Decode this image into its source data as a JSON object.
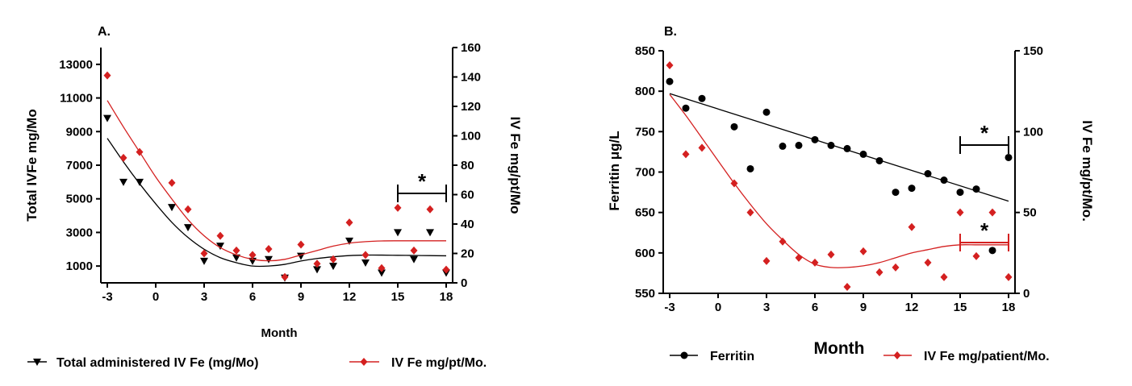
{
  "colors": {
    "black": "#000000",
    "red": "#d42020",
    "red_fit": "#c0392b"
  },
  "chart_data": [
    {
      "panel": "A.",
      "type": "scatter",
      "xlabel": "Month",
      "ylabel": "Total IVFe mg/Mo",
      "y2label": "IV Fe mg/pt/Mo",
      "xlim": [
        -3.4,
        18.4
      ],
      "xticks": [
        -3,
        0,
        3,
        6,
        9,
        12,
        15,
        18
      ],
      "ylim": [
        0,
        14000
      ],
      "yticks": [
        1000,
        3000,
        5000,
        7000,
        9000,
        11000,
        13000
      ],
      "y2lim": [
        0,
        160
      ],
      "y2ticks": [
        0,
        20,
        40,
        60,
        80,
        100,
        120,
        140,
        160
      ],
      "annotation": {
        "text": "*",
        "x_from": 15,
        "x_to": 18
      },
      "series": [
        {
          "name": "Total administered IV Fe (mg/Mo)",
          "axis": "left",
          "marker": "triangle-down",
          "color": "#000000",
          "x": [
            -3,
            -2,
            -1,
            1,
            2,
            3,
            4,
            5,
            6,
            7,
            8,
            9,
            10,
            11,
            12,
            13,
            14,
            15,
            16,
            17,
            18
          ],
          "y": [
            9800,
            6000,
            6000,
            4500,
            3300,
            1300,
            2200,
            1500,
            1300,
            1400,
            300,
            1600,
            800,
            1000,
            2500,
            1200,
            600,
            3000,
            1400,
            3000,
            600
          ],
          "fit": {
            "x": [
              -3,
              -2,
              -1,
              0,
              1,
              2,
              3,
              4,
              5,
              6,
              7,
              8,
              9,
              10,
              11,
              12,
              13,
              14,
              15,
              16,
              17,
              18
            ],
            "y": [
              8600,
              7200,
              5900,
              4700,
              3600,
              2700,
              2000,
              1500,
              1200,
              1000,
              1000,
              1100,
              1300,
              1450,
              1550,
              1620,
              1650,
              1650,
              1640,
              1630,
              1620,
              1610
            ]
          }
        },
        {
          "name": "IV Fe mg/pt/Mo.",
          "axis": "right",
          "marker": "diamond",
          "color": "#d42020",
          "x": [
            -3,
            -2,
            -1,
            1,
            2,
            3,
            4,
            5,
            6,
            7,
            8,
            9,
            10,
            11,
            12,
            13,
            14,
            15,
            16,
            17,
            18
          ],
          "y": [
            141,
            85,
            89,
            68,
            50,
            20,
            32,
            22,
            19,
            23,
            4,
            26,
            13,
            16,
            41,
            19,
            10,
            51,
            22,
            50,
            9
          ],
          "fit": {
            "x": [
              -3,
              -2,
              -1,
              0,
              1,
              2,
              3,
              4,
              5,
              6,
              7,
              8,
              9,
              10,
              11,
              12,
              13,
              14,
              15,
              16,
              17,
              18
            ],
            "y": [
              124,
              106,
              89,
              72,
              57,
              43,
              32,
              24,
              19,
              16,
              15,
              16,
              19,
              22,
              25,
              27,
              28,
              28.5,
              28.6,
              28.6,
              28.6,
              28.6
            ]
          }
        }
      ]
    },
    {
      "panel": "B.",
      "type": "scatter",
      "xlabel": "Month",
      "ylabel": "Ferritin μg/L",
      "y2label": "IV Fe mg/pt/Mo.",
      "xlim": [
        -3.4,
        18.4
      ],
      "xticks": [
        -3,
        0,
        3,
        6,
        9,
        12,
        15,
        18
      ],
      "ylim": [
        550,
        850
      ],
      "yticks": [
        550,
        600,
        650,
        700,
        750,
        800,
        850
      ],
      "y2lim": [
        0,
        150
      ],
      "y2ticks": [
        0,
        50,
        100,
        150
      ],
      "annotations": [
        {
          "text": "*",
          "x_from": 15,
          "x_to": 18,
          "y": 740,
          "color": "#000000"
        },
        {
          "text": "*",
          "x_from": 15,
          "x_to": 18,
          "y": 30,
          "axis": "right",
          "color": "#d42020"
        }
      ],
      "series": [
        {
          "name": "Ferritin",
          "axis": "left",
          "marker": "circle",
          "color": "#000000",
          "x": [
            -3,
            -2,
            -1,
            1,
            2,
            3,
            4,
            5,
            6,
            7,
            8,
            9,
            10,
            11,
            12,
            13,
            14,
            15,
            16,
            17,
            18
          ],
          "y": [
            812,
            779,
            791,
            756,
            704,
            774,
            732,
            733,
            740,
            733,
            729,
            722,
            714,
            675,
            680,
            698,
            690,
            675,
            679,
            603,
            718
          ],
          "fit": {
            "x": [
              -3,
              18
            ],
            "y": [
              797,
              664
            ]
          }
        },
        {
          "name": "IV Fe mg/patient/Mo.",
          "axis": "right",
          "marker": "diamond",
          "color": "#d42020",
          "x": [
            -3,
            -2,
            -1,
            1,
            2,
            3,
            4,
            5,
            6,
            7,
            8,
            9,
            10,
            11,
            12,
            13,
            14,
            15,
            16,
            17,
            18
          ],
          "y": [
            141,
            86,
            90,
            68,
            50,
            20,
            32,
            22,
            19,
            24,
            4,
            26,
            13,
            16,
            41,
            19,
            10,
            50,
            23,
            50,
            10
          ],
          "fit": {
            "x": [
              -3,
              -2,
              -1,
              0,
              1,
              2,
              3,
              4,
              5,
              6,
              7,
              8,
              9,
              10,
              11,
              12,
              13,
              14,
              15,
              16,
              17,
              18
            ],
            "y": [
              123,
              110,
              96,
              82,
              68,
              55,
              43,
              33,
              24,
              18,
              16,
              16,
              17,
              19,
              22,
              25,
              27,
              29,
              30,
              30,
              30,
              30
            ]
          }
        }
      ]
    }
  ]
}
